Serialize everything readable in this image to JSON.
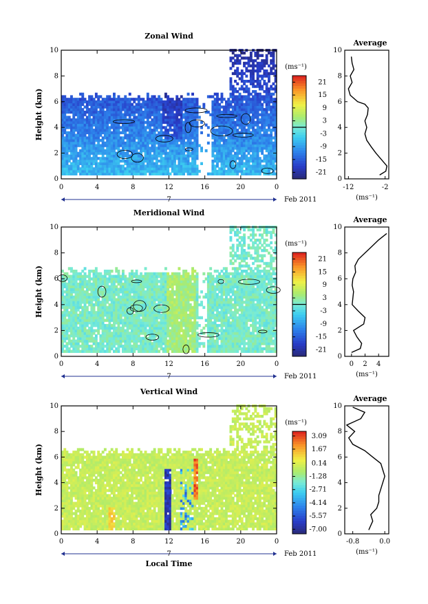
{
  "figure": {
    "x_ticks": [
      "0",
      "4",
      "8",
      "12",
      "16",
      "20",
      "0"
    ],
    "date_label": "7",
    "month_label": "Feb 2011",
    "x_axis_label": "Local Time"
  },
  "chart_data": [
    {
      "type": "heatmap",
      "title": "Zonal Wind",
      "ylabel": "Height (km)",
      "ylim": [
        0,
        10
      ],
      "y_ticks": [
        "0",
        "2",
        "4",
        "6",
        "8",
        "10"
      ],
      "xlim": [
        0,
        24
      ],
      "colorbar": {
        "unit_label": "(ms⁻¹)",
        "ticks": [
          "21",
          "15",
          "9",
          "3",
          "-3",
          "-9",
          "-15",
          "-21"
        ],
        "range": [
          -24,
          24
        ],
        "contour_level": 0
      },
      "field_summary": {
        "data_top_km": 6.3,
        "core_min_ms": -18,
        "data_gap_hours": [
          [
            15.2,
            16.6
          ]
        ]
      }
    },
    {
      "type": "line",
      "title": "Average",
      "xlabel": "(ms⁻¹)",
      "x_ticks": [
        "-12",
        "-2"
      ],
      "xlim": [
        -13,
        -1
      ],
      "ylim": [
        0,
        10
      ],
      "y_ticks": [
        "0",
        "2",
        "4",
        "6",
        "8",
        "10"
      ],
      "points": [
        [
          -3.5,
          0.3
        ],
        [
          -1.8,
          0.6
        ],
        [
          -1.5,
          1.0
        ],
        [
          -3.0,
          1.5
        ],
        [
          -4.5,
          2.0
        ],
        [
          -5.8,
          2.5
        ],
        [
          -7.0,
          3.0
        ],
        [
          -7.5,
          3.5
        ],
        [
          -7.0,
          4.0
        ],
        [
          -7.5,
          4.5
        ],
        [
          -6.8,
          5.0
        ],
        [
          -6.6,
          5.5
        ],
        [
          -7.5,
          5.8
        ],
        [
          -9.5,
          6.0
        ],
        [
          -11.5,
          6.5
        ],
        [
          -12.0,
          7.0
        ],
        [
          -11.0,
          7.5
        ],
        [
          -11.5,
          8.0
        ],
        [
          -10.5,
          8.5
        ],
        [
          -11.0,
          9.0
        ],
        [
          -11.2,
          9.5
        ]
      ]
    },
    {
      "type": "heatmap",
      "title": "Meridional Wind",
      "ylabel": "Height (km)",
      "ylim": [
        0,
        10
      ],
      "y_ticks": [
        "0",
        "2",
        "4",
        "6",
        "8",
        "10"
      ],
      "xlim": [
        0,
        24
      ],
      "colorbar": {
        "unit_label": "(ms⁻¹)",
        "ticks": [
          "21",
          "15",
          "9",
          "3",
          "-3",
          "-9",
          "-15",
          "-21"
        ],
        "range": [
          -24,
          24
        ],
        "contour_level": 0
      },
      "field_summary": {
        "data_top_km": 6.5,
        "core_max_ms": 6,
        "data_gap_hours": [
          [
            15.2,
            16.2
          ]
        ]
      }
    },
    {
      "type": "line",
      "title": "Average",
      "xlabel": "(ms⁻¹)",
      "x_ticks": [
        "0",
        "2",
        "4"
      ],
      "xlim": [
        -1,
        5.5
      ],
      "ylim": [
        0,
        10
      ],
      "y_ticks": [
        "0",
        "2",
        "4",
        "6",
        "8",
        "10"
      ],
      "points": [
        [
          0.0,
          0.3
        ],
        [
          1.3,
          0.6
        ],
        [
          1.5,
          1.0
        ],
        [
          0.8,
          1.5
        ],
        [
          0.3,
          2.0
        ],
        [
          1.8,
          2.5
        ],
        [
          2.0,
          3.0
        ],
        [
          1.0,
          3.5
        ],
        [
          0.1,
          4.0
        ],
        [
          0.2,
          4.5
        ],
        [
          0.3,
          5.0
        ],
        [
          0.1,
          5.5
        ],
        [
          0.2,
          6.0
        ],
        [
          0.6,
          6.5
        ],
        [
          0.5,
          7.0
        ],
        [
          1.0,
          7.5
        ],
        [
          2.0,
          8.0
        ],
        [
          3.0,
          8.5
        ],
        [
          4.0,
          9.0
        ],
        [
          5.2,
          9.5
        ]
      ]
    },
    {
      "type": "heatmap",
      "title": "Vertical Wind",
      "ylabel": "Height (km)",
      "ylim": [
        0,
        10
      ],
      "y_ticks": [
        "0",
        "2",
        "4",
        "6",
        "8",
        "10"
      ],
      "xlim": [
        0,
        24
      ],
      "colorbar": {
        "unit_label": "(ms⁻¹)",
        "ticks": [
          "3.09",
          "1.67",
          "0.14",
          "-1.28",
          "-2.71",
          "-4.14",
          "-5.57",
          "-7.00"
        ],
        "range": [
          -7.5,
          3.6
        ]
      },
      "field_summary": {
        "data_top_km": 6.4,
        "downdraft_hours": [
          11.5,
          14.6
        ],
        "updraft_hour": 14.8
      }
    },
    {
      "type": "line",
      "title": "Average",
      "xlabel": "(ms⁻¹)",
      "x_ticks": [
        "-0.8",
        "0.0"
      ],
      "xlim": [
        -1.0,
        0.1
      ],
      "ylim": [
        0,
        10
      ],
      "y_ticks": [
        "0",
        "2",
        "4",
        "6",
        "8",
        "10"
      ],
      "points": [
        [
          -0.4,
          0.3
        ],
        [
          -0.3,
          1.0
        ],
        [
          -0.35,
          1.5
        ],
        [
          -0.2,
          2.0
        ],
        [
          -0.15,
          2.5
        ],
        [
          -0.15,
          3.0
        ],
        [
          -0.1,
          3.5
        ],
        [
          -0.05,
          4.0
        ],
        [
          0.0,
          4.5
        ],
        [
          -0.05,
          5.0
        ],
        [
          -0.1,
          5.5
        ],
        [
          -0.3,
          6.0
        ],
        [
          -0.5,
          6.5
        ],
        [
          -0.8,
          7.0
        ],
        [
          -0.9,
          7.5
        ],
        [
          -0.75,
          8.0
        ],
        [
          -0.95,
          8.5
        ],
        [
          -0.6,
          9.0
        ],
        [
          -0.5,
          9.5
        ],
        [
          -0.8,
          9.9
        ]
      ]
    }
  ]
}
